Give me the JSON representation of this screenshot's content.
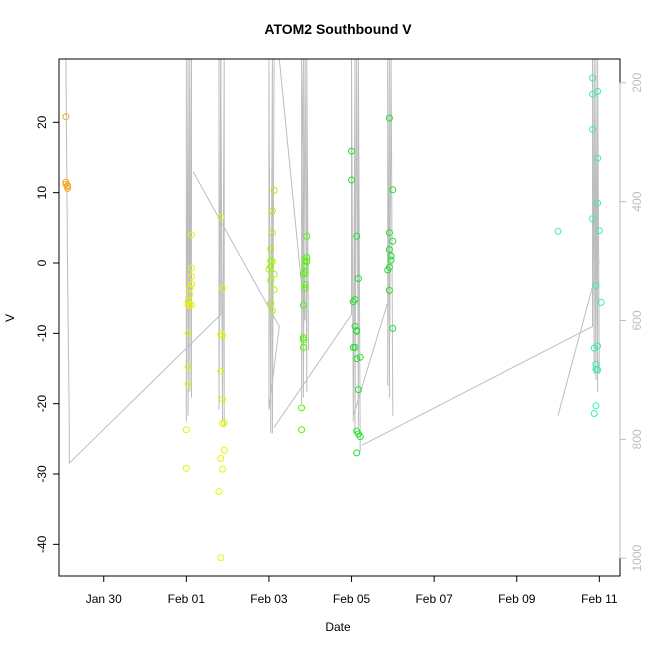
{
  "chart_data": {
    "type": "scatter",
    "title": "ATOM2 Southbound V",
    "xlabel": "Date",
    "ylabel": "V",
    "x_ticks": [
      "Jan 30",
      "Feb 01",
      "Feb 03",
      "Feb 05",
      "Feb 07",
      "Feb 09",
      "Feb 11"
    ],
    "y_ticks": [
      -40,
      -30,
      -20,
      -10,
      0,
      10,
      20
    ],
    "y2_ticks": [
      200,
      400,
      600,
      800,
      1000
    ],
    "xlim": [
      "2011-01-28 22:00",
      "2011-02-11 12:00"
    ],
    "ylim": [
      -44.5,
      29
    ],
    "y2lim": [
      1030,
      160
    ],
    "y2_reversed": true,
    "grid": false,
    "legend": "none",
    "colors": {
      "orange": "#f5a623",
      "yellow": "#e8f500",
      "ygreen": "#a6f500",
      "green": "#4cf500",
      "green2": "#22e030",
      "cyan": "#33f0b0",
      "line": "#bdbdbd",
      "axis": "#000000",
      "right_axis": "#bdbdbd"
    },
    "series": [
      {
        "color_key": "orange",
        "points": [
          [
            "2011-01-29 02:00",
            20.8
          ],
          [
            "2011-01-29 02:00",
            11.2
          ],
          [
            "2011-01-29 02:00",
            11.5
          ],
          [
            "2011-01-29 03:00",
            10.9
          ],
          [
            "2011-01-29 03:00",
            11.0
          ],
          [
            "2011-01-29 03:00",
            10.6
          ]
        ]
      },
      {
        "color_key": "yellow",
        "points": [
          [
            "2011-02-01 00:00",
            -23.7
          ],
          [
            "2011-02-01 00:00",
            -29.2
          ],
          [
            "2011-02-01 01:00",
            -17.2
          ],
          [
            "2011-02-01 01:00",
            -14.8
          ],
          [
            "2011-02-01 01:00",
            -10.0
          ],
          [
            "2011-02-01 01:00",
            -5.5
          ],
          [
            "2011-02-01 01:00",
            -6.0
          ],
          [
            "2011-02-01 02:00",
            -5.9
          ],
          [
            "2011-02-01 02:00",
            -3.6
          ],
          [
            "2011-02-01 02:00",
            -4.5
          ],
          [
            "2011-02-01 03:00",
            -3.0
          ],
          [
            "2011-02-01 03:00",
            -1.9
          ],
          [
            "2011-02-01 03:00",
            -0.7
          ],
          [
            "2011-02-01 03:00",
            -6.0
          ],
          [
            "2011-02-01 03:00",
            4.0
          ],
          [
            "2011-02-01 20:00",
            6.5
          ],
          [
            "2011-02-01 20:00",
            -27.8
          ],
          [
            "2011-02-01 19:00",
            -32.5
          ],
          [
            "2011-02-01 20:00",
            -41.9
          ],
          [
            "2011-02-01 22:00",
            -26.6
          ],
          [
            "2011-02-01 21:00",
            -29.3
          ],
          [
            "2011-02-01 21:00",
            -22.8
          ],
          [
            "2011-02-01 22:00",
            -22.7
          ],
          [
            "2011-02-01 21:00",
            -19.4
          ],
          [
            "2011-02-01 20:00",
            -15.4
          ],
          [
            "2011-02-01 20:00",
            -10.1
          ],
          [
            "2011-02-01 21:00",
            -10.3
          ],
          [
            "2011-02-01 21:00",
            -3.6
          ]
        ]
      },
      {
        "color_key": "ygreen",
        "points": [
          [
            "2011-02-03 00:00",
            -0.9
          ],
          [
            "2011-02-03 01:00",
            0.3
          ],
          [
            "2011-02-03 01:00",
            -2.5
          ],
          [
            "2011-02-03 01:00",
            -5.7
          ],
          [
            "2011-02-03 02:00",
            -6.8
          ],
          [
            "2011-02-03 01:00",
            2.0
          ],
          [
            "2011-02-03 02:00",
            4.3
          ],
          [
            "2011-02-03 02:00",
            7.4
          ],
          [
            "2011-02-03 03:00",
            10.3
          ],
          [
            "2011-02-03 03:00",
            -1.6
          ],
          [
            "2011-02-03 03:00",
            -3.8
          ],
          [
            "2011-02-03 02:00",
            0.2
          ],
          [
            "2011-02-03 01:00",
            -0.5
          ]
        ]
      },
      {
        "color_key": "green",
        "points": [
          [
            "2011-02-03 19:00",
            -20.6
          ],
          [
            "2011-02-03 19:00",
            -23.7
          ],
          [
            "2011-02-03 20:00",
            -12.0
          ],
          [
            "2011-02-03 20:00",
            -10.6
          ],
          [
            "2011-02-03 20:00",
            -10.9
          ],
          [
            "2011-02-03 20:00",
            -6.0
          ],
          [
            "2011-02-03 20:00",
            -1.6
          ],
          [
            "2011-02-03 21:00",
            -1.3
          ],
          [
            "2011-02-03 21:00",
            0.4
          ],
          [
            "2011-02-03 21:00",
            -0.4
          ],
          [
            "2011-02-03 22:00",
            0.8
          ],
          [
            "2011-02-03 22:00",
            3.8
          ],
          [
            "2011-02-03 22:00",
            0.2
          ],
          [
            "2011-02-03 21:00",
            -3.1
          ],
          [
            "2011-02-03 21:00",
            -3.6
          ]
        ]
      },
      {
        "color_key": "green2",
        "points": [
          [
            "2011-02-05 00:00",
            15.9
          ],
          [
            "2011-02-05 00:00",
            11.8
          ],
          [
            "2011-02-05 03:00",
            3.8
          ],
          [
            "2011-02-05 01:00",
            -5.5
          ],
          [
            "2011-02-05 02:00",
            -5.2
          ],
          [
            "2011-02-05 02:00",
            -9.0
          ],
          [
            "2011-02-05 03:00",
            -9.6
          ],
          [
            "2011-02-05 01:00",
            -12.0
          ],
          [
            "2011-02-05 02:00",
            -12.0
          ],
          [
            "2011-02-05 03:00",
            -13.6
          ],
          [
            "2011-02-05 05:00",
            -13.4
          ],
          [
            "2011-02-05 04:00",
            -18.0
          ],
          [
            "2011-02-05 03:00",
            -23.9
          ],
          [
            "2011-02-05 04:00",
            -24.3
          ],
          [
            "2011-02-05 05:00",
            -24.7
          ],
          [
            "2011-02-05 03:00",
            -27.0
          ],
          [
            "2011-02-05 04:00",
            -2.2
          ],
          [
            "2011-02-05 03:00",
            -9.7
          ],
          [
            "2011-02-05 22:00",
            20.6
          ],
          [
            "2011-02-06 00:00",
            10.4
          ],
          [
            "2011-02-05 22:00",
            4.3
          ],
          [
            "2011-02-06 00:00",
            3.1
          ],
          [
            "2011-02-05 22:00",
            1.9
          ],
          [
            "2011-02-05 23:00",
            1.0
          ],
          [
            "2011-02-05 23:00",
            0.4
          ],
          [
            "2011-02-05 22:00",
            -0.6
          ],
          [
            "2011-02-05 21:00",
            -1.0
          ],
          [
            "2011-02-05 22:00",
            -3.9
          ],
          [
            "2011-02-06 00:00",
            -9.3
          ]
        ]
      },
      {
        "color_key": "cyan",
        "points": [
          [
            "2011-02-10 00:00",
            4.5
          ],
          [
            "2011-02-10 20:00",
            26.3
          ],
          [
            "2011-02-10 20:00",
            24.0
          ],
          [
            "2011-02-10 23:00",
            24.4
          ],
          [
            "2011-02-10 20:00",
            19.0
          ],
          [
            "2011-02-10 23:00",
            14.9
          ],
          [
            "2011-02-10 23:00",
            8.5
          ],
          [
            "2011-02-10 20:00",
            6.3
          ],
          [
            "2011-02-11 00:00",
            4.6
          ],
          [
            "2011-02-10 22:00",
            -3.2
          ],
          [
            "2011-02-11 01:00",
            -5.6
          ],
          [
            "2011-02-10 23:00",
            -11.8
          ],
          [
            "2011-02-10 21:00",
            -12.1
          ],
          [
            "2011-02-10 22:00",
            -14.4
          ],
          [
            "2011-02-10 22:00",
            -15.1
          ],
          [
            "2011-02-10 23:00",
            -15.2
          ],
          [
            "2011-02-10 22:00",
            -20.3
          ],
          [
            "2011-02-10 21:00",
            -21.4
          ]
        ]
      }
    ],
    "line_series": {
      "color_key": "line",
      "axis": "right",
      "polylines": [
        [
          [
            "2011-01-29 02:00",
            160
          ],
          [
            "2011-01-29 03:00",
            520
          ],
          [
            "2011-01-29 04:00",
            780
          ],
          [
            "2011-01-29 04:00",
            840
          ],
          [
            "2011-02-01 20:00",
            590
          ],
          [
            "2011-02-01 20:00",
            160
          ]
        ],
        [
          [
            "2011-02-01 00:00",
            160
          ],
          [
            "2011-02-01 00:00",
            770
          ],
          [
            "2011-02-01 01:00",
            160
          ],
          [
            "2011-02-01 01:00",
            760
          ],
          [
            "2011-02-01 02:00",
            160
          ],
          [
            "2011-02-01 02:00",
            720
          ],
          [
            "2011-02-01 03:00",
            160
          ],
          [
            "2011-02-01 03:00",
            730
          ]
        ],
        [
          [
            "2011-02-01 19:00",
            160
          ],
          [
            "2011-02-01 19:00",
            750
          ],
          [
            "2011-02-01 20:00",
            160
          ],
          [
            "2011-02-01 21:00",
            770
          ],
          [
            "2011-02-01 22:00",
            160
          ],
          [
            "2011-02-01 22:00",
            780
          ]
        ],
        [
          [
            "2011-02-01 04:00",
            350
          ],
          [
            "2011-02-03 06:00",
            610
          ],
          [
            "2011-02-03 00:00",
            750
          ],
          [
            "2011-02-03 00:00",
            160
          ],
          [
            "2011-02-03 01:00",
            790
          ],
          [
            "2011-02-03 02:00",
            160
          ],
          [
            "2011-02-03 02:00",
            790
          ],
          [
            "2011-02-03 03:00",
            160
          ]
        ],
        [
          [
            "2011-02-03 06:00",
            160
          ],
          [
            "2011-02-03 21:00",
            600
          ],
          [
            "2011-02-03 19:00",
            160
          ],
          [
            "2011-02-03 19:00",
            740
          ],
          [
            "2011-02-03 20:00",
            160
          ],
          [
            "2011-02-03 20:00",
            730
          ],
          [
            "2011-02-03 21:00",
            160
          ],
          [
            "2011-02-03 22:00",
            720
          ],
          [
            "2011-02-03 22:00",
            160
          ],
          [
            "2011-02-03 23:00",
            650
          ]
        ],
        [
          [
            "2011-02-03 03:00",
            780
          ],
          [
            "2011-02-05 00:00",
            590
          ],
          [
            "2011-02-05 00:00",
            160
          ],
          [
            "2011-02-05 01:00",
            770
          ],
          [
            "2011-02-05 02:00",
            160
          ],
          [
            "2011-02-05 02:00",
            790
          ],
          [
            "2011-02-05 03:00",
            160
          ],
          [
            "2011-02-05 04:00",
            780
          ],
          [
            "2011-02-05 04:00",
            160
          ],
          [
            "2011-02-05 05:00",
            820
          ]
        ],
        [
          [
            "2011-02-05 01:00",
            760
          ],
          [
            "2011-02-05 21:00",
            570
          ],
          [
            "2011-02-05 21:00",
            160
          ],
          [
            "2011-02-05 21:00",
            710
          ],
          [
            "2011-02-05 22:00",
            160
          ],
          [
            "2011-02-05 22:00",
            730
          ],
          [
            "2011-02-05 23:00",
            160
          ],
          [
            "2011-02-06 00:00",
            760
          ]
        ],
        [
          [
            "2011-02-05 06:00",
            810
          ],
          [
            "2011-02-10 20:00",
            610
          ],
          [
            "2011-02-10 20:00",
            160
          ],
          [
            "2011-02-10 21:00",
            690
          ],
          [
            "2011-02-10 21:00",
            160
          ],
          [
            "2011-02-10 22:00",
            700
          ],
          [
            "2011-02-10 22:00",
            160
          ],
          [
            "2011-02-10 23:00",
            720
          ],
          [
            "2011-02-10 23:00",
            160
          ],
          [
            "2011-02-11 00:00",
            690
          ]
        ],
        [
          [
            "2011-02-10 00:00",
            760
          ],
          [
            "2011-02-11 00:00",
            500
          ]
        ]
      ]
    }
  }
}
